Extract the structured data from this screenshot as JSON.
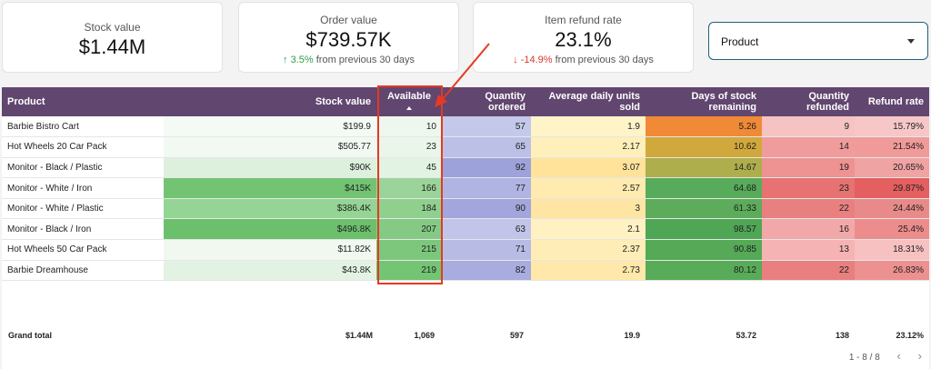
{
  "kpis": {
    "stock": {
      "label": "Stock value",
      "value": "$1.44M"
    },
    "order": {
      "label": "Order value",
      "value": "$739.57K",
      "delta": "3.5%",
      "delta_text": "from previous 30 days",
      "arrow": "↑"
    },
    "refund": {
      "label": "Item refund rate",
      "value": "23.1%",
      "delta": "-14.9%",
      "delta_text": "from previous 30 days",
      "arrow": "↓"
    }
  },
  "dropdown": {
    "label": "Product"
  },
  "table": {
    "headers": [
      "Product",
      "Stock value",
      "Available",
      "Quantity ordered",
      "Average daily units sold",
      "Days of stock remaining",
      "Quantity refunded",
      "Refund rate"
    ],
    "rows": [
      [
        "Barbie Bistro Cart",
        "$199.9",
        "10",
        "57",
        "1.9",
        "5.26",
        "9",
        "15.79%"
      ],
      [
        "Hot Wheels 20 Car Pack",
        "$505.77",
        "23",
        "65",
        "2.17",
        "10.62",
        "14",
        "21.54%"
      ],
      [
        "Monitor - Black / Plastic",
        "$90K",
        "45",
        "92",
        "3.07",
        "14.67",
        "19",
        "20.65%"
      ],
      [
        "Monitor - White / Iron",
        "$415K",
        "166",
        "77",
        "2.57",
        "64.68",
        "23",
        "29.87%"
      ],
      [
        "Monitor - White / Plastic",
        "$386.4K",
        "184",
        "90",
        "3",
        "61.33",
        "22",
        "24.44%"
      ],
      [
        "Monitor - Black / Iron",
        "$496.8K",
        "207",
        "63",
        "2.1",
        "98.57",
        "16",
        "25.4%"
      ],
      [
        "Hot Wheels 50 Car Pack",
        "$11.82K",
        "215",
        "71",
        "2.37",
        "90.85",
        "13",
        "18.31%"
      ],
      [
        "Barbie Dreamhouse",
        "$43.8K",
        "219",
        "82",
        "2.73",
        "80.12",
        "22",
        "26.83%"
      ]
    ],
    "colors": [
      [
        "#ffffff",
        "#f4faf4",
        "#eef7ee",
        "#c4c8ea",
        "#fff3c8",
        "#f08a37",
        "#f6c3c3",
        "#f7c7c7"
      ],
      [
        "#ffffff",
        "#f2f9f2",
        "#eaf6ea",
        "#bcc0e7",
        "#ffefba",
        "#d1a83c",
        "#f19c9c",
        "#f19a9a"
      ],
      [
        "#ffffff",
        "#ddf0dd",
        "#e3f3e3",
        "#9da2da",
        "#ffe39a",
        "#aeae4c",
        "#ee9292",
        "#f0a3a3"
      ],
      [
        "#ffffff",
        "#72c472",
        "#9ad49a",
        "#b0b4e2",
        "#ffeab0",
        "#58ab5a",
        "#e67272",
        "#e45f5f"
      ],
      [
        "#ffffff",
        "#94d494",
        "#8fd08f",
        "#a2a6dc",
        "#ffe5a3",
        "#5cac5c",
        "#e98080",
        "#e98a8a"
      ],
      [
        "#ffffff",
        "#6cc06c",
        "#84ca84",
        "#c2c5e9",
        "#fff1c2",
        "#4fa655",
        "#f2a8a8",
        "#ed8c8c"
      ],
      [
        "#ffffff",
        "#f0f8f0",
        "#7dc77d",
        "#b8bce5",
        "#ffedb8",
        "#55a957",
        "#f5b3b3",
        "#f7c1c1"
      ],
      [
        "#ffffff",
        "#e3f3e3",
        "#73c473",
        "#a8acdf",
        "#ffe8aa",
        "#58ab58",
        "#e97f7f",
        "#ec9090"
      ]
    ]
  },
  "grand_total": {
    "label": "Grand total",
    "values": [
      "$1.44M",
      "1,069",
      "597",
      "19.9",
      "53.72",
      "138",
      "23.12%"
    ]
  },
  "pager": {
    "count": "1 - 8 / 8",
    "prev": "‹",
    "next": "›"
  }
}
